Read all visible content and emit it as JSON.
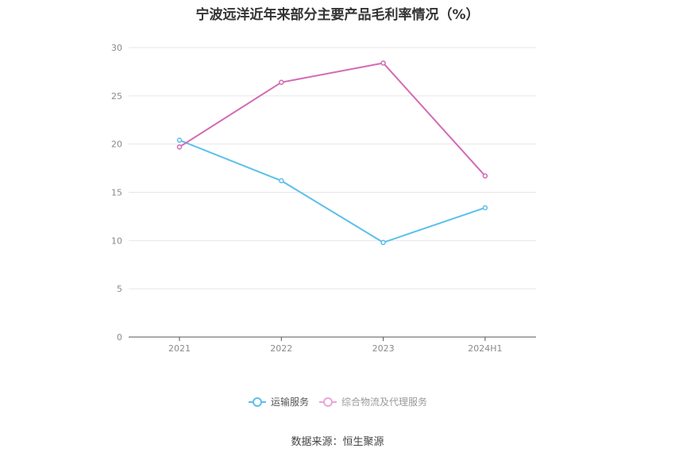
{
  "title": "宁波远洋近年来部分主要产品毛利率情况（%）",
  "source": "数据来源：恒生聚源",
  "chart_data": {
    "type": "line",
    "categories": [
      "2021",
      "2022",
      "2023",
      "2024H1"
    ],
    "series": [
      {
        "name": "运输服务",
        "values": [
          20.4,
          16.2,
          9.8,
          13.4
        ],
        "color": "#5bc0eb"
      },
      {
        "name": "综合物流及代理服务",
        "values": [
          19.7,
          26.4,
          28.4,
          16.7
        ],
        "color": "#d36bb4"
      }
    ],
    "ylim": [
      0,
      30
    ],
    "yticks": [
      "0",
      "5",
      "10",
      "15",
      "20",
      "25",
      "30"
    ],
    "grid": true,
    "legend_position": "bottom-center"
  }
}
